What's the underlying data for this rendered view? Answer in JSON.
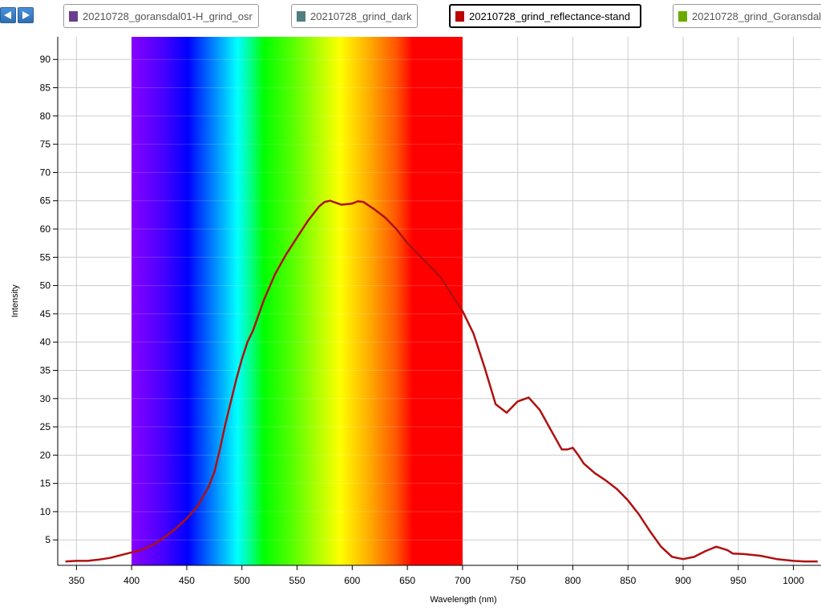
{
  "nav": {
    "prev_icon": "triangle-left-icon",
    "next_icon": "triangle-right-icon"
  },
  "legend": [
    {
      "label": "20210728_goransdal01-H_grind_osr",
      "color": "#6a3d8f",
      "active": false
    },
    {
      "label": "20210728_grind_dark",
      "color": "#4f7f7f",
      "active": false
    },
    {
      "label": "20210728_grind_reflectance-stand",
      "color": "#bb0000",
      "active": true
    },
    {
      "label": "20210728_grind_Goransdal",
      "color": "#6aaa00",
      "active": false
    }
  ],
  "chart_data": {
    "type": "line",
    "xlabel": "Wavelength (nm)",
    "ylabel": "Intensity",
    "xlim": [
      333,
      1025
    ],
    "ylim": [
      0.5,
      94
    ],
    "xticks": [
      350,
      400,
      450,
      500,
      550,
      600,
      650,
      700,
      750,
      800,
      850,
      900,
      950,
      1000
    ],
    "yticks": [
      5,
      10,
      15,
      20,
      25,
      30,
      35,
      40,
      45,
      50,
      55,
      60,
      65,
      70,
      75,
      80,
      85,
      90
    ],
    "grid": true,
    "spectrum_band": [
      400,
      700
    ],
    "series": [
      {
        "name": "20210728_grind_reflectance-stand",
        "color": "#b01010",
        "points": [
          [
            340,
            1.2
          ],
          [
            350,
            1.3
          ],
          [
            360,
            1.3
          ],
          [
            370,
            1.5
          ],
          [
            380,
            1.8
          ],
          [
            390,
            2.3
          ],
          [
            400,
            2.8
          ],
          [
            410,
            3.3
          ],
          [
            420,
            4.2
          ],
          [
            430,
            5.5
          ],
          [
            440,
            7.0
          ],
          [
            450,
            8.8
          ],
          [
            460,
            11.0
          ],
          [
            470,
            14.5
          ],
          [
            475,
            17.0
          ],
          [
            480,
            21.0
          ],
          [
            485,
            25.5
          ],
          [
            490,
            29.5
          ],
          [
            495,
            33.5
          ],
          [
            500,
            37.0
          ],
          [
            505,
            40.0
          ],
          [
            510,
            42.0
          ],
          [
            520,
            47.5
          ],
          [
            530,
            52.0
          ],
          [
            540,
            55.5
          ],
          [
            550,
            58.5
          ],
          [
            560,
            61.5
          ],
          [
            570,
            64.0
          ],
          [
            575,
            64.8
          ],
          [
            580,
            65.0
          ],
          [
            590,
            64.3
          ],
          [
            600,
            64.5
          ],
          [
            605,
            64.9
          ],
          [
            610,
            64.8
          ],
          [
            620,
            63.5
          ],
          [
            630,
            62.0
          ],
          [
            640,
            60.0
          ],
          [
            650,
            57.5
          ],
          [
            660,
            55.5
          ],
          [
            670,
            53.5
          ],
          [
            680,
            51.5
          ],
          [
            690,
            48.5
          ],
          [
            700,
            45.5
          ],
          [
            710,
            41.5
          ],
          [
            720,
            35.5
          ],
          [
            730,
            29.0
          ],
          [
            740,
            27.5
          ],
          [
            750,
            29.5
          ],
          [
            760,
            30.2
          ],
          [
            770,
            28.0
          ],
          [
            780,
            24.5
          ],
          [
            790,
            21.0
          ],
          [
            795,
            21.0
          ],
          [
            800,
            21.3
          ],
          [
            805,
            20.0
          ],
          [
            810,
            18.5
          ],
          [
            820,
            16.8
          ],
          [
            830,
            15.5
          ],
          [
            840,
            14.0
          ],
          [
            850,
            12.0
          ],
          [
            860,
            9.5
          ],
          [
            870,
            6.5
          ],
          [
            880,
            3.8
          ],
          [
            890,
            2.0
          ],
          [
            900,
            1.6
          ],
          [
            910,
            2.0
          ],
          [
            920,
            3.0
          ],
          [
            930,
            3.8
          ],
          [
            940,
            3.2
          ],
          [
            945,
            2.6
          ],
          [
            955,
            2.5
          ],
          [
            970,
            2.2
          ],
          [
            985,
            1.6
          ],
          [
            1000,
            1.3
          ],
          [
            1010,
            1.2
          ],
          [
            1022,
            1.2
          ]
        ]
      }
    ]
  }
}
